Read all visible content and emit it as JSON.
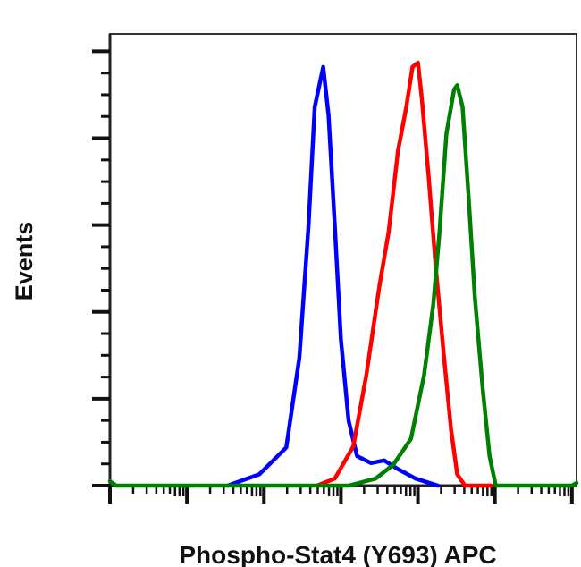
{
  "chart_data": {
    "type": "line",
    "title": "",
    "xlabel": "Phospho-Stat4 (Y693) APC",
    "ylabel": "Events",
    "x_scale": "log (decades, unlabeled ticks)",
    "xlim": [
      0,
      6.06
    ],
    "ylim": [
      0,
      5.2
    ],
    "grid": false,
    "legend": "none",
    "series": [
      {
        "color": "#0000ff",
        "points": [
          [
            1.53,
            0
          ],
          [
            1.94,
            0.13
          ],
          [
            2.29,
            0.44
          ],
          [
            2.46,
            1.47
          ],
          [
            2.58,
            3.0
          ],
          [
            2.66,
            4.36
          ],
          [
            2.77,
            4.82
          ],
          [
            2.84,
            4.26
          ],
          [
            2.92,
            3.0
          ],
          [
            3.0,
            1.68
          ],
          [
            3.1,
            0.75
          ],
          [
            3.21,
            0.34
          ],
          [
            3.39,
            0.26
          ],
          [
            3.56,
            0.29
          ],
          [
            3.74,
            0.19
          ],
          [
            3.97,
            0.08
          ],
          [
            4.26,
            0
          ]
        ]
      },
      {
        "color": "#ff0000",
        "points": [
          [
            2.69,
            0
          ],
          [
            2.92,
            0.08
          ],
          [
            3.16,
            0.45
          ],
          [
            3.33,
            1.27
          ],
          [
            3.5,
            2.3
          ],
          [
            3.62,
            2.92
          ],
          [
            3.74,
            3.85
          ],
          [
            3.85,
            4.36
          ],
          [
            3.93,
            4.82
          ],
          [
            4.0,
            4.87
          ],
          [
            4.05,
            4.46
          ],
          [
            4.14,
            3.55
          ],
          [
            4.23,
            2.53
          ],
          [
            4.34,
            1.47
          ],
          [
            4.43,
            0.65
          ],
          [
            4.51,
            0.13
          ],
          [
            4.61,
            0
          ],
          [
            4.95,
            0
          ]
        ]
      },
      {
        "color": "#008000",
        "points": [
          [
            0,
            0.05
          ],
          [
            0.08,
            0
          ],
          [
            3.1,
            0
          ],
          [
            3.45,
            0.08
          ],
          [
            3.68,
            0.24
          ],
          [
            3.91,
            0.54
          ],
          [
            4.08,
            1.27
          ],
          [
            4.2,
            2.09
          ],
          [
            4.28,
            2.92
          ],
          [
            4.37,
            4.05
          ],
          [
            4.47,
            4.56
          ],
          [
            4.51,
            4.61
          ],
          [
            4.58,
            4.36
          ],
          [
            4.66,
            3.3
          ],
          [
            4.74,
            2.16
          ],
          [
            4.84,
            1.13
          ],
          [
            4.93,
            0.34
          ],
          [
            5.01,
            0
          ],
          [
            6.0,
            0
          ],
          [
            6.06,
            0.03
          ]
        ]
      }
    ]
  }
}
